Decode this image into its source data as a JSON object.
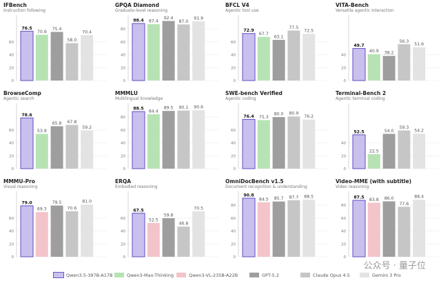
{
  "chart_data": {
    "type": "bar",
    "models": [
      {
        "name": "Qwen3.5-397B-A17B",
        "color": "#c9c0ee",
        "border": "#6b58c7"
      },
      {
        "name": "Qwen3-Max-Thinking",
        "color": "#b7e3b4",
        "border": ""
      },
      {
        "name": "Qwen3-VL-235B-A22B",
        "color": "#f3c4ca",
        "border": ""
      },
      {
        "name": "GPT-5.2",
        "color": "#9e9e9e",
        "border": ""
      },
      {
        "name": "Claude Opus 4.5",
        "color": "#c6c6c6",
        "border": ""
      },
      {
        "name": "Gemini 3 Pro",
        "color": "#e3e3e3",
        "border": ""
      }
    ],
    "panels": [
      {
        "title": "IFBench",
        "subtitle": "Instruction following",
        "yticks": [
          0,
          20,
          40,
          60
        ],
        "values": [
          {
            "m": 0,
            "v": 76.5
          },
          {
            "m": 1,
            "v": 70.9
          },
          {
            "m": 3,
            "v": 75.4
          },
          {
            "m": 4,
            "v": 58.0
          },
          {
            "m": 5,
            "v": 70.4
          }
        ]
      },
      {
        "title": "GPQA Diamond",
        "subtitle": "Graduate-level reasoning",
        "yticks": [
          0,
          20,
          40,
          60,
          80
        ],
        "values": [
          {
            "m": 0,
            "v": 88.4
          },
          {
            "m": 1,
            "v": 87.4
          },
          {
            "m": 3,
            "v": 92.4
          },
          {
            "m": 4,
            "v": 87.0
          },
          {
            "m": 5,
            "v": 91.9
          }
        ]
      },
      {
        "title": "BFCL V4",
        "subtitle": "Agentic tool use",
        "yticks": [
          0,
          20,
          40,
          60
        ],
        "values": [
          {
            "m": 0,
            "v": 72.9
          },
          {
            "m": 1,
            "v": 67.7
          },
          {
            "m": 3,
            "v": 63.1
          },
          {
            "m": 4,
            "v": 77.5
          },
          {
            "m": 5,
            "v": 72.5
          }
        ]
      },
      {
        "title": "VITA-Bench",
        "subtitle": "Versatile agentic interaction",
        "yticks": [
          0,
          20,
          40
        ],
        "values": [
          {
            "m": 0,
            "v": 49.7
          },
          {
            "m": 1,
            "v": 40.9
          },
          {
            "m": 3,
            "v": 38.2
          },
          {
            "m": 4,
            "v": 56.3
          },
          {
            "m": 5,
            "v": 51.6
          }
        ]
      },
      {
        "title": "BrowseComp",
        "subtitle": "Agentic search",
        "yticks": [
          0,
          20,
          40,
          60
        ],
        "values": [
          {
            "m": 0,
            "v": 78.6
          },
          {
            "m": 1,
            "v": 53.9
          },
          {
            "m": 3,
            "v": 65.8
          },
          {
            "m": 4,
            "v": 67.8
          },
          {
            "m": 5,
            "v": 59.2
          }
        ]
      },
      {
        "title": "MMMLU",
        "subtitle": "Multilingual knowledge",
        "yticks": [
          0,
          20,
          40,
          60,
          80
        ],
        "values": [
          {
            "m": 0,
            "v": 88.5
          },
          {
            "m": 1,
            "v": 84.4
          },
          {
            "m": 3,
            "v": 89.5
          },
          {
            "m": 4,
            "v": 90.1
          },
          {
            "m": 5,
            "v": 90.6
          }
        ]
      },
      {
        "title": "SWE-bench Verified",
        "subtitle": "Agentic coding",
        "yticks": [
          0,
          20,
          40,
          60
        ],
        "values": [
          {
            "m": 0,
            "v": 76.4
          },
          {
            "m": 1,
            "v": 75.3
          },
          {
            "m": 3,
            "v": 80.0
          },
          {
            "m": 4,
            "v": 80.9
          },
          {
            "m": 5,
            "v": 76.2
          }
        ]
      },
      {
        "title": "Terminal-Bench 2",
        "subtitle": "Agentic terminal coding",
        "yticks": [
          0,
          20,
          40
        ],
        "values": [
          {
            "m": 0,
            "v": 52.5
          },
          {
            "m": 1,
            "v": 22.5
          },
          {
            "m": 3,
            "v": 54.0
          },
          {
            "m": 4,
            "v": 59.3
          },
          {
            "m": 5,
            "v": 54.2
          }
        ]
      },
      {
        "title": "MMMU-Pro",
        "subtitle": "Visual reasoning",
        "yticks": [
          0,
          20,
          40,
          60
        ],
        "values": [
          {
            "m": 0,
            "v": 79.0
          },
          {
            "m": 2,
            "v": 69.3
          },
          {
            "m": 3,
            "v": 79.5
          },
          {
            "m": 4,
            "v": 70.6
          },
          {
            "m": 5,
            "v": 81.0
          }
        ]
      },
      {
        "title": "ERQA",
        "subtitle": "Embodied reasoning",
        "yticks": [
          0,
          20,
          40,
          60
        ],
        "values": [
          {
            "m": 0,
            "v": 67.5
          },
          {
            "m": 2,
            "v": 52.5
          },
          {
            "m": 3,
            "v": 59.8
          },
          {
            "m": 4,
            "v": 46.8
          },
          {
            "m": 5,
            "v": 70.5
          }
        ]
      },
      {
        "title": "OmniDocBench v1.5",
        "subtitle": "Document recognition & understanding",
        "yticks": [
          0,
          20,
          40,
          60,
          80
        ],
        "values": [
          {
            "m": 0,
            "v": 90.8
          },
          {
            "m": 2,
            "v": 84.5
          },
          {
            "m": 3,
            "v": 85.7
          },
          {
            "m": 4,
            "v": 87.7
          },
          {
            "m": 5,
            "v": 88.5
          }
        ]
      },
      {
        "title": "Video-MME (with subtitle)",
        "subtitle": "Video reasoning",
        "yticks": [
          0,
          20,
          40,
          60,
          80
        ],
        "values": [
          {
            "m": 0,
            "v": 87.5
          },
          {
            "m": 2,
            "v": 83.8
          },
          {
            "m": 3,
            "v": 86.0
          },
          {
            "m": 4,
            "v": 77.6
          },
          {
            "m": 5,
            "v": 88.4
          }
        ]
      }
    ]
  },
  "watermark": "公众号 · 量子位"
}
